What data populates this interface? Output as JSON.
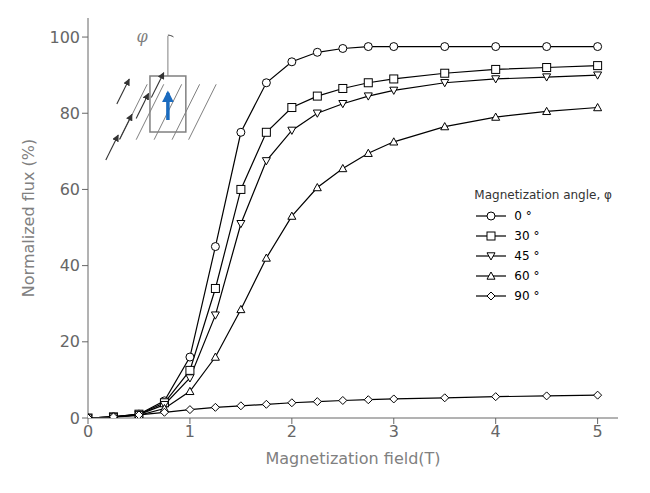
{
  "chart_data": {
    "type": "line",
    "xlabel": "Magnetization field(T)",
    "ylabel": "Normalized flux (%)",
    "xlim": [
      0,
      5.2
    ],
    "ylim": [
      0,
      105
    ],
    "xticks": [
      0,
      1,
      2,
      3,
      4,
      5
    ],
    "yticks": [
      0,
      20,
      40,
      60,
      80,
      100
    ],
    "legend_title": "Magnetization angle, φ",
    "legend": "center right",
    "grid": false,
    "annotations": [
      "φ"
    ],
    "x": [
      0.0,
      0.25,
      0.5,
      0.75,
      1.0,
      1.25,
      1.5,
      1.75,
      2.0,
      2.25,
      2.5,
      2.75,
      3.0,
      3.5,
      4.0,
      4.5,
      5.0
    ],
    "series": [
      {
        "name": "0 °",
        "marker": "circle",
        "color": "#000000",
        "values": [
          0.0,
          0.3,
          1.0,
          4.5,
          16.0,
          45.0,
          75.0,
          88.0,
          93.5,
          96.0,
          97.0,
          97.5,
          97.5,
          97.5,
          97.5,
          97.5,
          97.5
        ]
      },
      {
        "name": "30 °",
        "marker": "square",
        "color": "#000000",
        "values": [
          0.0,
          0.3,
          1.0,
          4.0,
          12.5,
          34.0,
          60.0,
          75.0,
          81.5,
          84.5,
          86.5,
          88.0,
          89.0,
          90.5,
          91.5,
          92.0,
          92.5
        ]
      },
      {
        "name": "45 °",
        "marker": "triangle-down",
        "color": "#000000",
        "values": [
          0.0,
          0.3,
          0.9,
          3.5,
          10.5,
          27.0,
          51.0,
          67.5,
          75.5,
          80.0,
          82.5,
          84.5,
          86.0,
          88.0,
          89.0,
          89.5,
          90.0
        ]
      },
      {
        "name": "60 °",
        "marker": "triangle-up",
        "color": "#000000",
        "values": [
          0.0,
          0.2,
          0.7,
          2.5,
          7.0,
          16.0,
          28.5,
          42.0,
          53.0,
          60.5,
          65.5,
          69.5,
          72.5,
          76.5,
          79.0,
          80.5,
          81.5
        ]
      },
      {
        "name": "90 °",
        "marker": "diamond",
        "color": "#000000",
        "values": [
          0.0,
          0.3,
          0.8,
          1.5,
          2.2,
          2.8,
          3.2,
          3.6,
          4.0,
          4.3,
          4.6,
          4.8,
          5.0,
          5.3,
          5.6,
          5.8,
          6.0
        ]
      }
    ]
  }
}
